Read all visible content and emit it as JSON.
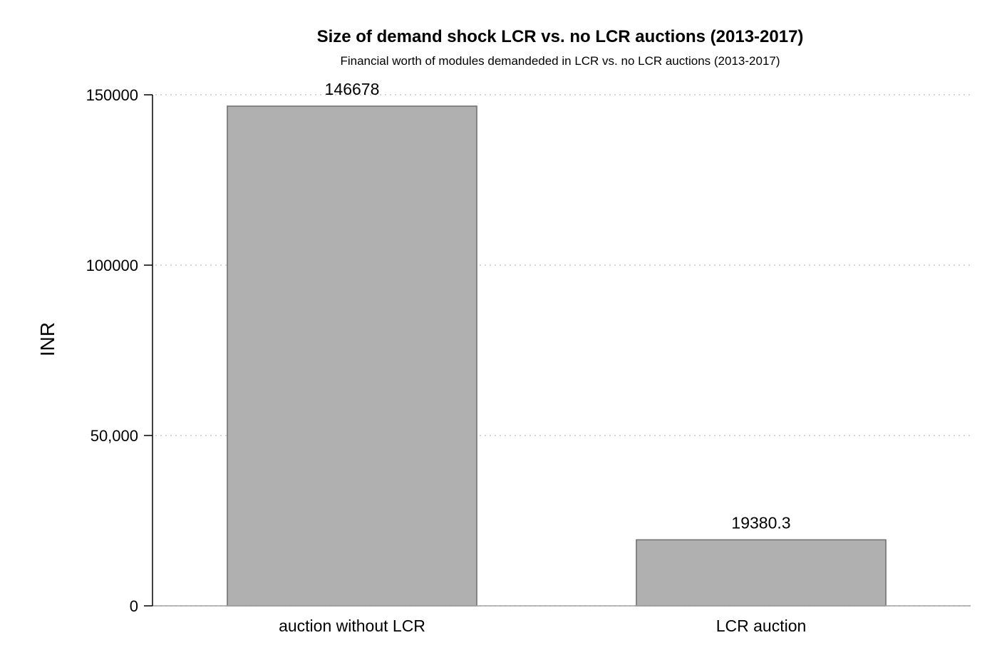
{
  "chart_data": {
    "type": "bar",
    "title": "Size of demand shock LCR vs. no LCR auctions (2013-2017)",
    "subtitle": "Financial worth of modules demandeded in LCR vs. no LCR auctions (2013-2017)",
    "xlabel": "",
    "ylabel": "INR",
    "categories": [
      "auction without LCR",
      "LCR auction"
    ],
    "values": [
      146678,
      19380.3
    ],
    "data_labels": [
      "146678",
      "19380.3"
    ],
    "ylim": [
      0,
      150000
    ],
    "yticks": [
      0,
      50000,
      100000,
      150000
    ],
    "ytick_labels": [
      "0",
      "50,000",
      "100000",
      "150000"
    ],
    "grid": "horizontal-dotted",
    "bar_color": "#b0b0b0",
    "bar_edge_color": "#6e6e6e",
    "grid_color": "#c8c8c8"
  }
}
